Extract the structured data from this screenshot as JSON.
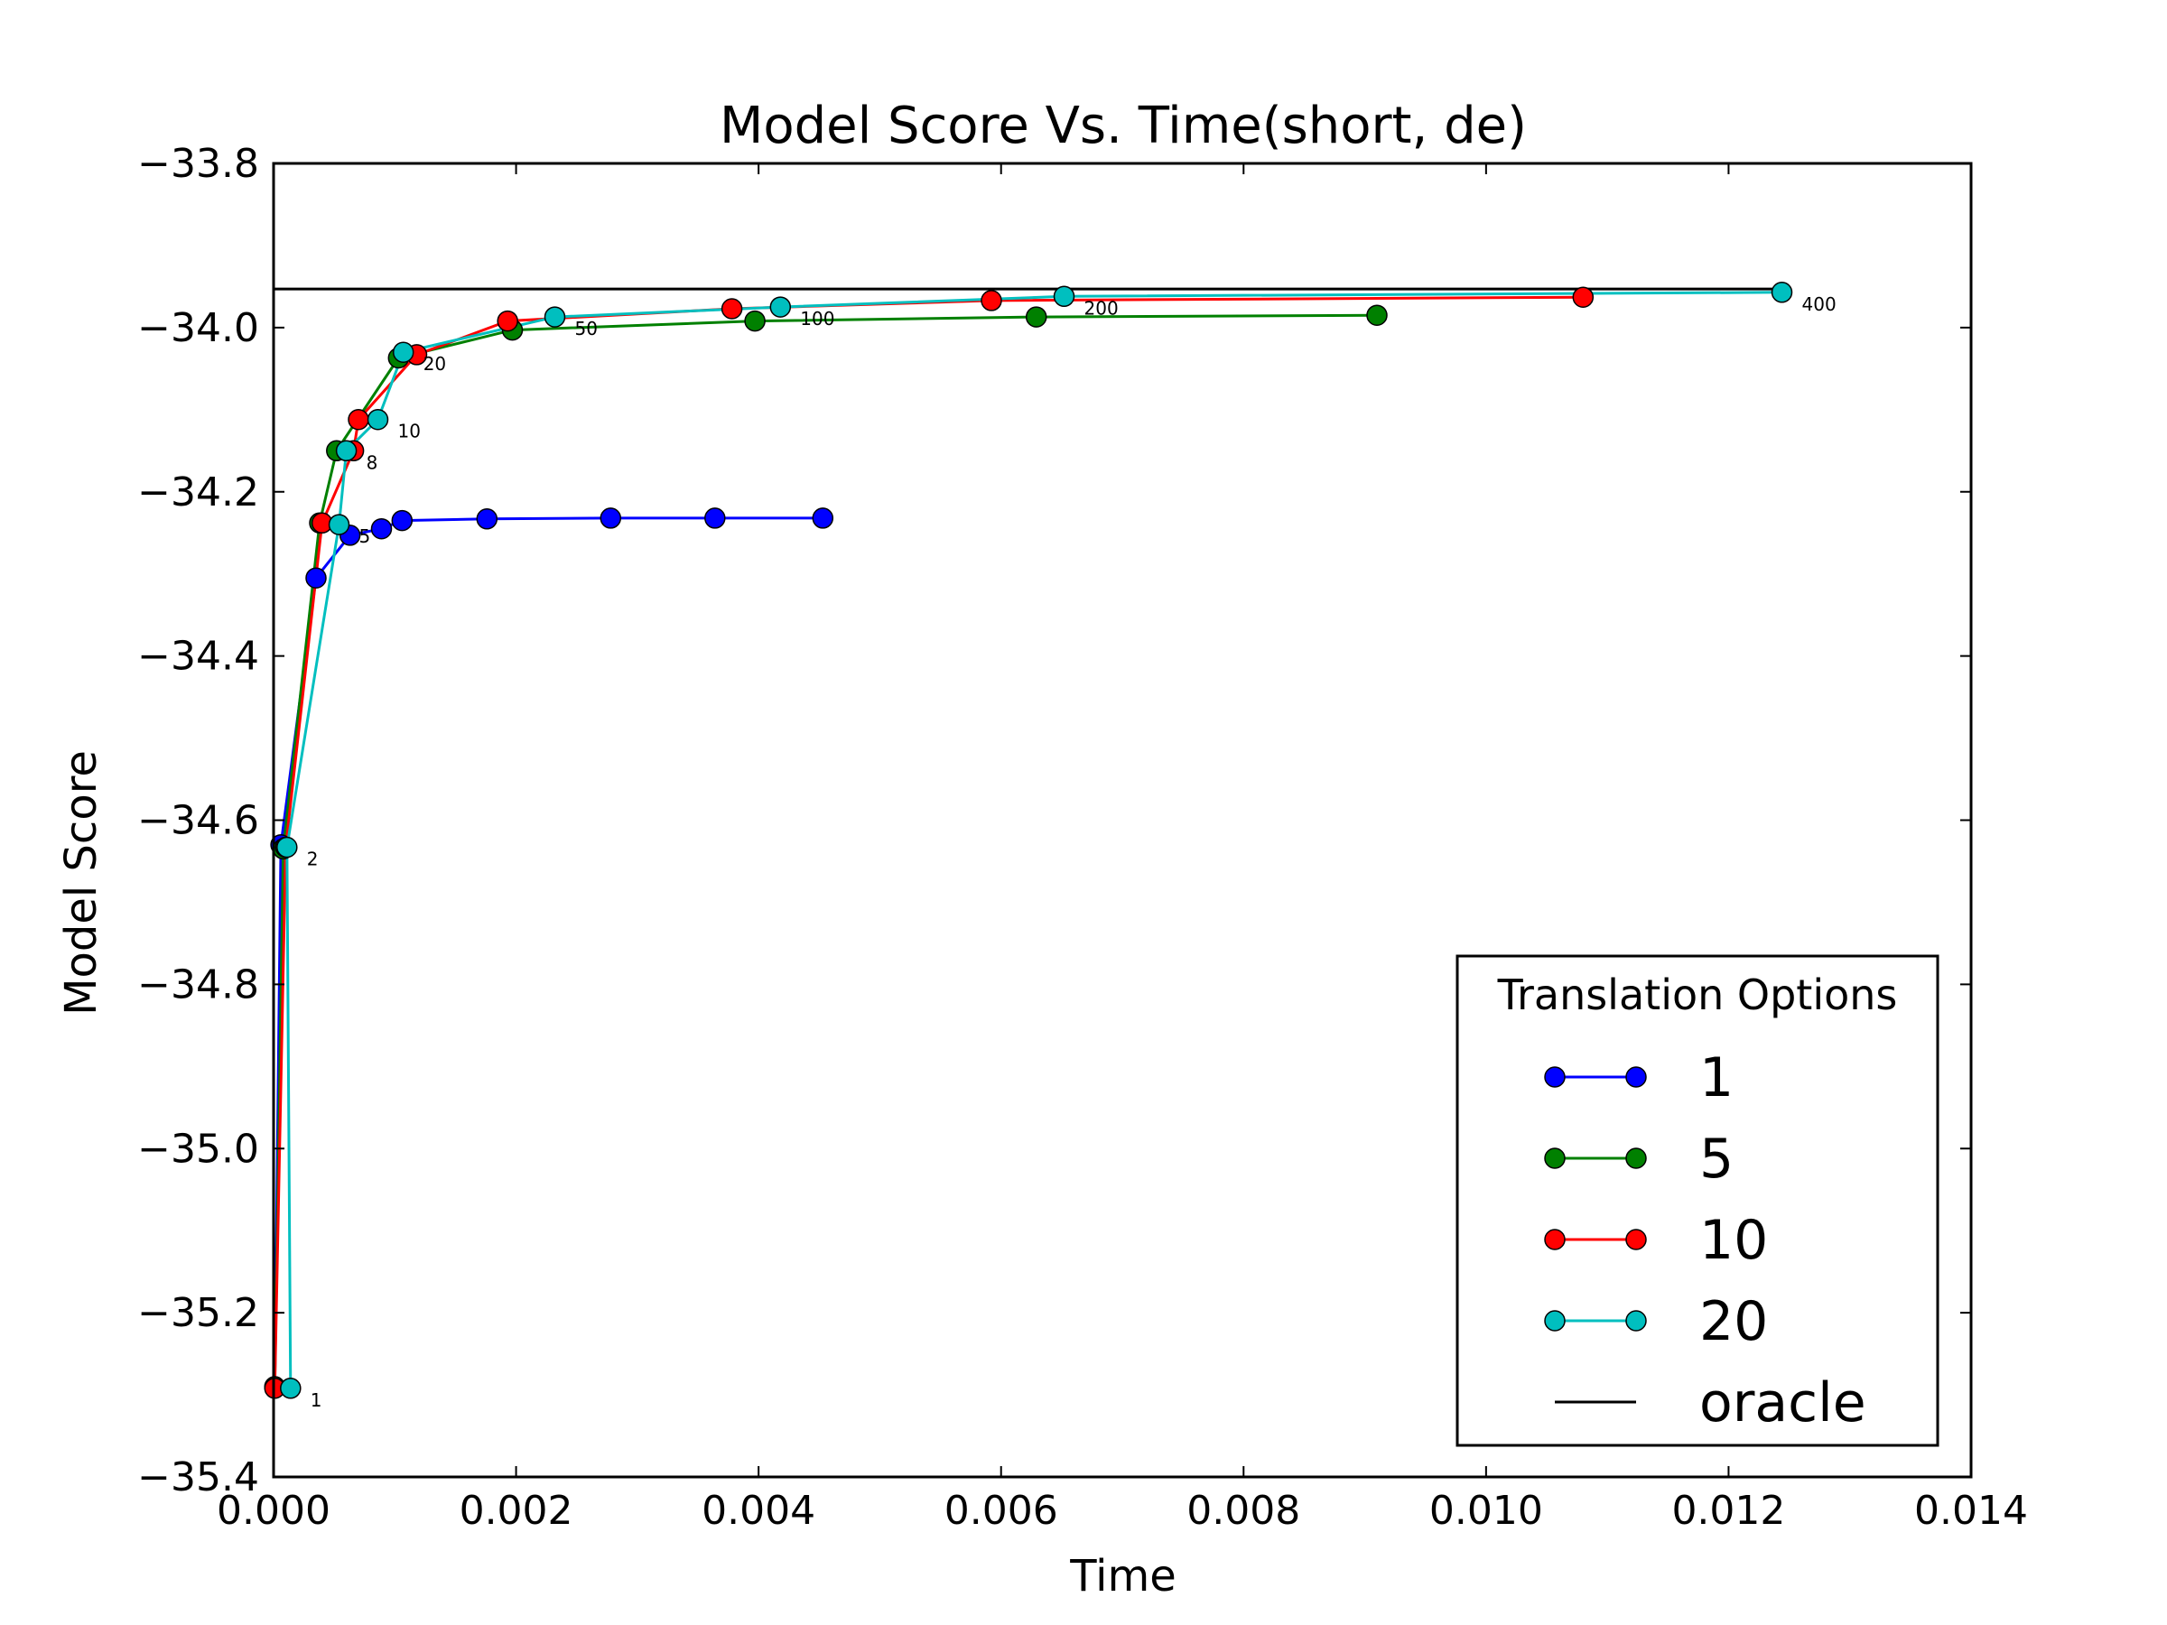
{
  "chart_data": {
    "type": "line",
    "title": "Model Score Vs. Time(short, de)",
    "xlabel": "Time",
    "ylabel": "Model Score",
    "xlim": [
      0,
      0.014
    ],
    "ylim": [
      -35.4,
      -33.8
    ],
    "x_ticks": [
      0,
      0.002,
      0.004,
      0.006,
      0.008,
      0.01,
      0.012,
      0.014
    ],
    "x_tick_labels": [
      "0.000",
      "0.002",
      "0.004",
      "0.006",
      "0.008",
      "0.010",
      "0.012",
      "0.014"
    ],
    "y_ticks": [
      -33.8,
      -34.0,
      -34.2,
      -34.4,
      -34.6,
      -34.8,
      -35.0,
      -35.2,
      -35.4
    ],
    "y_tick_labels": [
      "−33.8",
      "−34.0",
      "−34.2",
      "−34.4",
      "−34.6",
      "−34.8",
      "−35.0",
      "−35.2",
      "−35.4"
    ],
    "grid": false,
    "legend": {
      "title": "Translation Options",
      "position": "lower-right"
    },
    "series": [
      {
        "name": "1",
        "color": "#0000ff",
        "marker": "circle",
        "x": [
          1e-05,
          6e-05,
          0.00035,
          0.00063,
          0.00089,
          0.00106,
          0.00176,
          0.00278,
          0.00364,
          0.00453
        ],
        "y": [
          -35.29,
          -34.63,
          -34.305,
          -34.253,
          -34.245,
          -34.235,
          -34.233,
          -34.232,
          -34.232,
          -34.232
        ]
      },
      {
        "name": "5",
        "color": "#008000",
        "marker": "circle",
        "x": [
          1e-05,
          8e-05,
          0.00038,
          0.00052,
          0.00103,
          0.00197,
          0.00397,
          0.00629,
          0.0091
        ],
        "y": [
          -35.29,
          -34.635,
          -34.238,
          -34.15,
          -34.037,
          -34.003,
          -33.992,
          -33.987,
          -33.985
        ]
      },
      {
        "name": "10",
        "color": "#ff0000",
        "marker": "circle",
        "x": [
          1e-05,
          0.0001,
          0.0004,
          0.00066,
          0.0007,
          0.00118,
          0.00193,
          0.00378,
          0.00592,
          0.0108
        ],
        "y": [
          -35.292,
          -34.633,
          -34.238,
          -34.15,
          -34.112,
          -34.033,
          -33.992,
          -33.977,
          -33.967,
          -33.963
        ]
      },
      {
        "name": "20",
        "color": "#00bfbf",
        "marker": "circle",
        "x": [
          0.00014,
          0.00011,
          0.00054,
          0.0006,
          0.00086,
          0.00107,
          0.00232,
          0.00418,
          0.00652,
          0.01244
        ],
        "y": [
          -35.292,
          -34.633,
          -34.24,
          -34.15,
          -34.112,
          -34.03,
          -33.987,
          -33.975,
          -33.962,
          -33.957
        ]
      }
    ],
    "reference_lines": [
      {
        "name": "oracle",
        "color": "#000000",
        "y": -33.953,
        "x_range": [
          0,
          0.01244
        ]
      }
    ],
    "annotations": [
      {
        "text": "1",
        "x": 0.00014,
        "y": -35.292
      },
      {
        "text": "2",
        "x": 0.00011,
        "y": -34.633
      },
      {
        "text": "5",
        "x": 0.00054,
        "y": -34.24
      },
      {
        "text": "8",
        "x": 0.0006,
        "y": -34.15
      },
      {
        "text": "10",
        "x": 0.00086,
        "y": -34.112
      },
      {
        "text": "20",
        "x": 0.00107,
        "y": -34.03
      },
      {
        "text": "50",
        "x": 0.00232,
        "y": -33.987
      },
      {
        "text": "100",
        "x": 0.00418,
        "y": -33.975
      },
      {
        "text": "200",
        "x": 0.00652,
        "y": -33.962
      },
      {
        "text": "400",
        "x": 0.01244,
        "y": -33.957
      }
    ]
  }
}
